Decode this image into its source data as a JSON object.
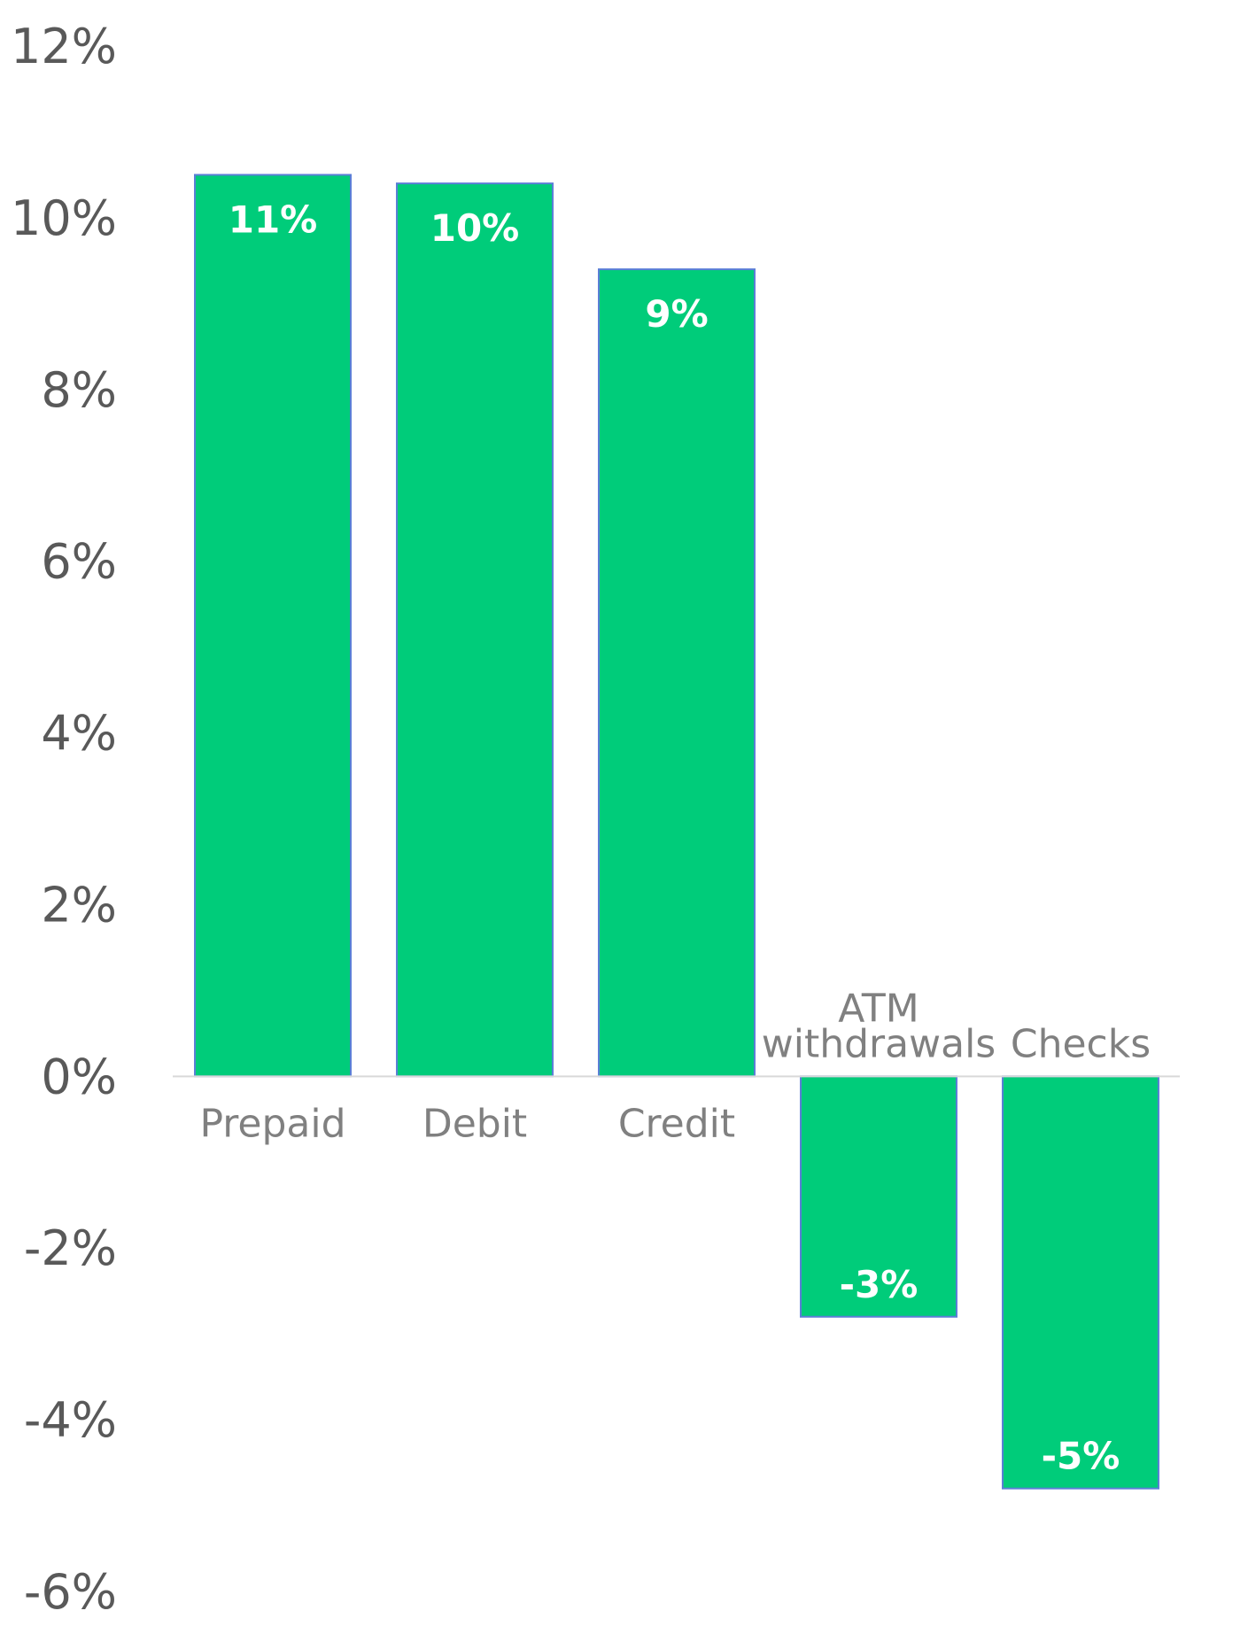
{
  "chart_data": {
    "type": "bar",
    "title": "",
    "xlabel": "",
    "ylabel": "",
    "categories": [
      "Prepaid",
      "Debit",
      "Credit",
      "ATM withdrawals",
      "Checks"
    ],
    "category_label_lines": [
      [
        "Prepaid"
      ],
      [
        "Debit"
      ],
      [
        "Credit"
      ],
      [
        "ATM",
        "withdrawals"
      ],
      [
        "Checks"
      ]
    ],
    "values": [
      10.5,
      10.4,
      9.4,
      -2.8,
      -4.8
    ],
    "data_labels": [
      "11%",
      "10%",
      "9%",
      "-3%",
      "-5%"
    ],
    "ylim": [
      -6,
      12
    ],
    "yticks": [
      12,
      10,
      8,
      6,
      4,
      2,
      0,
      -2,
      -4,
      -6
    ],
    "ytick_labels": [
      "12%",
      "10%",
      "8%",
      "6%",
      "4%",
      "2%",
      "0%",
      "-2%",
      "-4%",
      "-6%"
    ],
    "grid": false,
    "legend": "none",
    "colors": {
      "bar_fill": "#00CC7A",
      "bar_stroke": "#5B7FD6",
      "axis_line": "#D9D9D9",
      "tick_text": "#595959",
      "category_text": "#808080",
      "data_label_text": "#FFFFFF"
    }
  }
}
